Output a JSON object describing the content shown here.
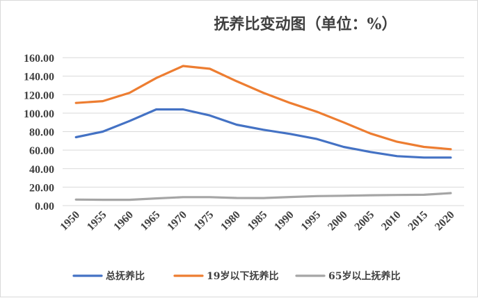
{
  "chart_data": {
    "type": "line",
    "title": "抚养比变动图（单位：%）",
    "x": [
      "1950",
      "1955",
      "1960",
      "1965",
      "1970",
      "1975",
      "1980",
      "1985",
      "1990",
      "1995",
      "2000",
      "2005",
      "2010",
      "2015",
      "2020"
    ],
    "ylim": [
      0,
      160
    ],
    "yticks": [
      "0.00",
      "20.00",
      "40.00",
      "60.00",
      "80.00",
      "100.00",
      "120.00",
      "140.00",
      "160.00"
    ],
    "grid": true,
    "legend": "bottom",
    "series": [
      {
        "name": "总抚养比",
        "color": "#4472C4",
        "values": [
          74,
          80,
          91.5,
          104,
          104,
          97.5,
          87.5,
          82,
          77.5,
          72,
          63.5,
          58,
          53.5,
          52,
          52
        ]
      },
      {
        "name": "19岁以下抚养比",
        "color": "#ED7D31",
        "values": [
          111,
          113,
          122,
          138,
          151,
          148,
          134.5,
          122,
          111,
          101.5,
          90,
          78,
          69,
          63.5,
          61
        ]
      },
      {
        "name": "65岁以上抚养比",
        "color": "#A5A5A5",
        "values": [
          6.5,
          6.3,
          6.3,
          7.8,
          9.2,
          9.2,
          8.3,
          8.2,
          9.3,
          10.3,
          10.7,
          11.2,
          11.5,
          11.7,
          13.5
        ]
      }
    ]
  }
}
